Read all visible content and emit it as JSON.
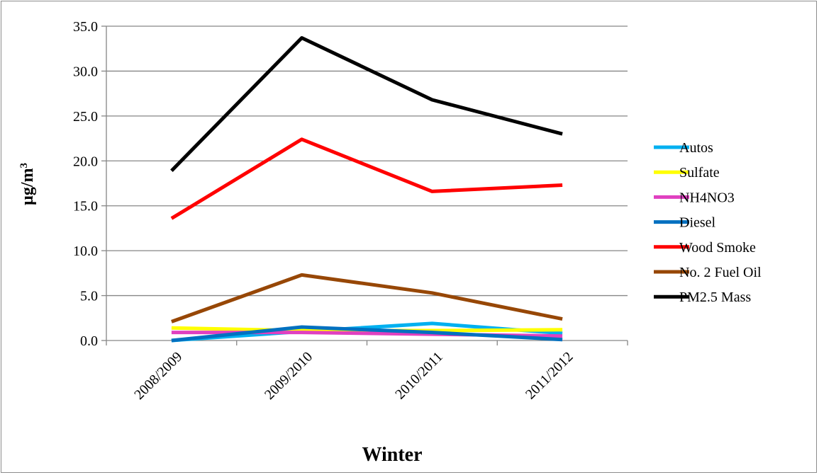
{
  "chart_data": {
    "type": "line",
    "title": "",
    "xlabel": "Winter",
    "ylabel": "µg/m³",
    "ylabel_base": "µg/m",
    "ylabel_sup": "3",
    "categories": [
      "2008/2009",
      "2009/2010",
      "2010/2011",
      "2011/2012"
    ],
    "ylim": [
      0,
      35
    ],
    "ytick_step": 5,
    "yticks": [
      "0.0",
      "5.0",
      "10.0",
      "15.0",
      "20.0",
      "25.0",
      "30.0",
      "35.0"
    ],
    "grid": true,
    "legend_position": "right",
    "series": [
      {
        "name": "Autos",
        "color": "#00b0f0",
        "values": [
          0.0,
          1.0,
          1.9,
          0.8
        ]
      },
      {
        "name": "Sulfate",
        "color": "#ffff00",
        "values": [
          1.4,
          1.1,
          1.1,
          1.2
        ]
      },
      {
        "name": "NH4NO3",
        "color": "#e040c0",
        "values": [
          0.9,
          0.9,
          0.7,
          0.5
        ]
      },
      {
        "name": "Diesel",
        "color": "#0070c0",
        "values": [
          0.0,
          1.5,
          0.9,
          0.1
        ]
      },
      {
        "name": "Wood Smoke",
        "color": "#ff0000",
        "values": [
          13.6,
          22.4,
          16.6,
          17.3
        ]
      },
      {
        "name": "No. 2 Fuel Oil",
        "color": "#974706",
        "values": [
          2.1,
          7.3,
          5.3,
          2.4
        ]
      },
      {
        "name": "PM2.5 Mass",
        "color": "#000000",
        "values": [
          18.9,
          33.7,
          26.8,
          23.0
        ]
      }
    ]
  }
}
